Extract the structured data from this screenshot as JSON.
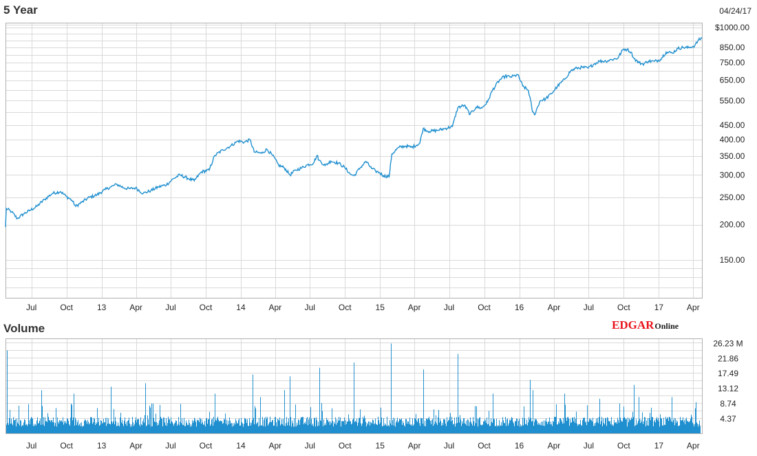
{
  "price_title": "5 Year",
  "volume_title": "Volume",
  "date_label": "04/24/17",
  "brand": {
    "primary": "EDGAR",
    "secondary": "Online",
    "primary_color": "#e8131b"
  },
  "line_color": "#1f8fcf",
  "bar_color": "#1f8fcf",
  "chart_data": [
    {
      "type": "line",
      "title": "5 Year",
      "y_scale": "log",
      "ylim": [
        110,
        1040
      ],
      "y_ticks": [
        {
          "value": 1000,
          "label": "$1000.00"
        },
        {
          "value": 850,
          "label": "850.00"
        },
        {
          "value": 750,
          "label": "750.00"
        },
        {
          "value": 650,
          "label": "650.00"
        },
        {
          "value": 550,
          "label": "550.00"
        },
        {
          "value": 450,
          "label": "450.00"
        },
        {
          "value": 400,
          "label": "400.00"
        },
        {
          "value": 350,
          "label": "350.00"
        },
        {
          "value": 300,
          "label": "300.00"
        },
        {
          "value": 250,
          "label": "250.00"
        },
        {
          "value": 200,
          "label": "200.00"
        },
        {
          "value": 150,
          "label": "150.00"
        }
      ],
      "x_range": [
        "2012-04-24",
        "2017-04-24"
      ],
      "x_ticks": [
        {
          "date": "2012-07-01",
          "label": "Jul"
        },
        {
          "date": "2012-10-01",
          "label": "Oct"
        },
        {
          "date": "2013-01-01",
          "label": "13"
        },
        {
          "date": "2013-04-01",
          "label": "Apr"
        },
        {
          "date": "2013-07-01",
          "label": "Jul"
        },
        {
          "date": "2013-10-01",
          "label": "Oct"
        },
        {
          "date": "2014-01-01",
          "label": "14"
        },
        {
          "date": "2014-04-01",
          "label": "Apr"
        },
        {
          "date": "2014-07-01",
          "label": "Jul"
        },
        {
          "date": "2014-10-01",
          "label": "Oct"
        },
        {
          "date": "2015-01-01",
          "label": "15"
        },
        {
          "date": "2015-04-01",
          "label": "Apr"
        },
        {
          "date": "2015-07-01",
          "label": "Jul"
        },
        {
          "date": "2015-10-01",
          "label": "Oct"
        },
        {
          "date": "2016-01-01",
          "label": "16"
        },
        {
          "date": "2016-04-01",
          "label": "Apr"
        },
        {
          "date": "2016-07-01",
          "label": "Jul"
        },
        {
          "date": "2016-10-01",
          "label": "Oct"
        },
        {
          "date": "2017-01-01",
          "label": "17"
        },
        {
          "date": "2017-04-01",
          "label": "Apr"
        }
      ],
      "series": [
        {
          "points": [
            [
              "2012-04-24",
              196
            ],
            [
              "2012-04-26",
              228
            ],
            [
              "2012-05-10",
              222
            ],
            [
              "2012-05-25",
              210
            ],
            [
              "2012-06-10",
              218
            ],
            [
              "2012-06-28",
              225
            ],
            [
              "2012-07-15",
              232
            ],
            [
              "2012-08-05",
              246
            ],
            [
              "2012-08-25",
              258
            ],
            [
              "2012-09-15",
              262
            ],
            [
              "2012-09-30",
              252
            ],
            [
              "2012-10-15",
              244
            ],
            [
              "2012-10-25",
              232
            ],
            [
              "2012-11-10",
              240
            ],
            [
              "2012-11-30",
              250
            ],
            [
              "2012-12-20",
              255
            ],
            [
              "2013-01-10",
              266
            ],
            [
              "2013-01-25",
              272
            ],
            [
              "2013-02-10",
              278
            ],
            [
              "2013-02-28",
              270
            ],
            [
              "2013-03-15",
              268
            ],
            [
              "2013-03-31",
              270
            ],
            [
              "2013-04-20",
              258
            ],
            [
              "2013-05-10",
              264
            ],
            [
              "2013-05-30",
              272
            ],
            [
              "2013-06-20",
              277
            ],
            [
              "2013-07-10",
              292
            ],
            [
              "2013-07-25",
              300
            ],
            [
              "2013-08-15",
              292
            ],
            [
              "2013-09-01",
              286
            ],
            [
              "2013-09-20",
              308
            ],
            [
              "2013-10-10",
              312
            ],
            [
              "2013-10-25",
              352
            ],
            [
              "2013-11-15",
              368
            ],
            [
              "2013-12-05",
              380
            ],
            [
              "2013-12-25",
              396
            ],
            [
              "2014-01-10",
              392
            ],
            [
              "2014-01-25",
              400
            ],
            [
              "2014-02-05",
              362
            ],
            [
              "2014-02-25",
              358
            ],
            [
              "2014-03-10",
              370
            ],
            [
              "2014-03-25",
              352
            ],
            [
              "2014-04-10",
              325
            ],
            [
              "2014-04-25",
              318
            ],
            [
              "2014-05-10",
              300
            ],
            [
              "2014-05-25",
              312
            ],
            [
              "2014-06-10",
              318
            ],
            [
              "2014-06-25",
              326
            ],
            [
              "2014-07-10",
              330
            ],
            [
              "2014-07-20",
              352
            ],
            [
              "2014-07-25",
              338
            ],
            [
              "2014-08-10",
              324
            ],
            [
              "2014-08-25",
              336
            ],
            [
              "2014-09-15",
              330
            ],
            [
              "2014-10-01",
              318
            ],
            [
              "2014-10-15",
              302
            ],
            [
              "2014-10-25",
              298
            ],
            [
              "2014-11-10",
              318
            ],
            [
              "2014-11-25",
              335
            ],
            [
              "2014-12-10",
              316
            ],
            [
              "2014-12-20",
              310
            ],
            [
              "2014-12-30",
              306
            ],
            [
              "2015-01-10",
              298
            ],
            [
              "2015-01-25",
              296
            ],
            [
              "2015-02-01",
              356
            ],
            [
              "2015-02-20",
              376
            ],
            [
              "2015-03-10",
              380
            ],
            [
              "2015-03-25",
              376
            ],
            [
              "2015-04-15",
              388
            ],
            [
              "2015-04-24",
              438
            ],
            [
              "2015-05-10",
              428
            ],
            [
              "2015-06-01",
              432
            ],
            [
              "2015-06-20",
              438
            ],
            [
              "2015-07-10",
              446
            ],
            [
              "2015-07-24",
              520
            ],
            [
              "2015-08-10",
              530
            ],
            [
              "2015-08-25",
              492
            ],
            [
              "2015-09-10",
              522
            ],
            [
              "2015-09-25",
              518
            ],
            [
              "2015-10-10",
              545
            ],
            [
              "2015-10-23",
              600
            ],
            [
              "2015-11-10",
              650
            ],
            [
              "2015-11-25",
              672
            ],
            [
              "2015-12-10",
              668
            ],
            [
              "2015-12-28",
              680
            ],
            [
              "2016-01-10",
              620
            ],
            [
              "2016-01-25",
              598
            ],
            [
              "2016-02-05",
              502
            ],
            [
              "2016-02-10",
              490
            ],
            [
              "2016-02-25",
              550
            ],
            [
              "2016-03-10",
              558
            ],
            [
              "2016-03-25",
              582
            ],
            [
              "2016-04-10",
              618
            ],
            [
              "2016-04-29",
              655
            ],
            [
              "2016-05-15",
              702
            ],
            [
              "2016-05-31",
              718
            ],
            [
              "2016-06-15",
              722
            ],
            [
              "2016-06-30",
              718
            ],
            [
              "2016-07-15",
              742
            ],
            [
              "2016-07-29",
              760
            ],
            [
              "2016-08-15",
              760
            ],
            [
              "2016-08-31",
              770
            ],
            [
              "2016-09-15",
              778
            ],
            [
              "2016-09-30",
              838
            ],
            [
              "2016-10-10",
              836
            ],
            [
              "2016-10-20",
              818
            ],
            [
              "2016-10-28",
              776
            ],
            [
              "2016-11-10",
              750
            ],
            [
              "2016-11-20",
              742
            ],
            [
              "2016-12-05",
              760
            ],
            [
              "2016-12-20",
              758
            ],
            [
              "2017-01-05",
              770
            ],
            [
              "2017-01-20",
              818
            ],
            [
              "2017-02-05",
              812
            ],
            [
              "2017-02-20",
              842
            ],
            [
              "2017-03-05",
              850
            ],
            [
              "2017-03-20",
              848
            ],
            [
              "2017-04-05",
              862
            ],
            [
              "2017-04-15",
              902
            ],
            [
              "2017-04-24",
              918
            ]
          ]
        }
      ]
    },
    {
      "type": "bar",
      "title": "Volume",
      "ylim": [
        0,
        27.5
      ],
      "y_ticks": [
        {
          "value": 26.23,
          "label": "26.23 M"
        },
        {
          "value": 21.86,
          "label": "21.86"
        },
        {
          "value": 17.49,
          "label": "17.49"
        },
        {
          "value": 13.12,
          "label": "13.12"
        },
        {
          "value": 8.74,
          "label": "8.74"
        },
        {
          "value": 4.37,
          "label": "4.37"
        }
      ],
      "x_range": [
        "2012-04-24",
        "2017-04-24"
      ],
      "x_ticks": [
        {
          "date": "2012-07-01",
          "label": "Jul"
        },
        {
          "date": "2012-10-01",
          "label": "Oct"
        },
        {
          "date": "2013-01-01",
          "label": "13"
        },
        {
          "date": "2013-04-01",
          "label": "Apr"
        },
        {
          "date": "2013-07-01",
          "label": "Jul"
        },
        {
          "date": "2013-10-01",
          "label": "Oct"
        },
        {
          "date": "2014-01-01",
          "label": "14"
        },
        {
          "date": "2014-04-01",
          "label": "Apr"
        },
        {
          "date": "2014-07-01",
          "label": "Jul"
        },
        {
          "date": "2014-10-01",
          "label": "Oct"
        },
        {
          "date": "2015-01-01",
          "label": "15"
        },
        {
          "date": "2015-04-01",
          "label": "Apr"
        },
        {
          "date": "2015-07-01",
          "label": "Jul"
        },
        {
          "date": "2015-10-01",
          "label": "Oct"
        },
        {
          "date": "2016-01-01",
          "label": "16"
        },
        {
          "date": "2016-04-01",
          "label": "Apr"
        },
        {
          "date": "2016-07-01",
          "label": "Jul"
        },
        {
          "date": "2016-10-01",
          "label": "Oct"
        },
        {
          "date": "2017-01-01",
          "label": "17"
        },
        {
          "date": "2017-04-01",
          "label": "Apr"
        }
      ],
      "baseline_volume": 4.2,
      "spikes": [
        [
          "2012-04-27",
          24.0
        ],
        [
          "2012-07-27",
          12.5
        ],
        [
          "2012-10-19",
          11.5
        ],
        [
          "2013-01-25",
          13.5
        ],
        [
          "2013-04-26",
          14.5
        ],
        [
          "2013-07-26",
          8.5
        ],
        [
          "2013-10-25",
          11.5
        ],
        [
          "2014-01-31",
          17.0
        ],
        [
          "2014-02-21",
          10.5
        ],
        [
          "2014-04-25",
          12.5
        ],
        [
          "2014-05-09",
          16.5
        ],
        [
          "2014-07-25",
          19.0
        ],
        [
          "2014-10-24",
          20.5
        ],
        [
          "2015-01-30",
          26.0
        ],
        [
          "2015-04-24",
          18.5
        ],
        [
          "2015-07-24",
          23.0
        ],
        [
          "2015-10-23",
          11.5
        ],
        [
          "2016-01-29",
          15.5
        ],
        [
          "2016-02-05",
          12.5
        ],
        [
          "2016-04-29",
          11.5
        ],
        [
          "2016-07-29",
          10.0
        ],
        [
          "2016-10-28",
          14.0
        ],
        [
          "2016-11-09",
          10.5
        ],
        [
          "2017-02-03",
          10.5
        ],
        [
          "2017-04-07",
          9.0
        ]
      ]
    }
  ]
}
